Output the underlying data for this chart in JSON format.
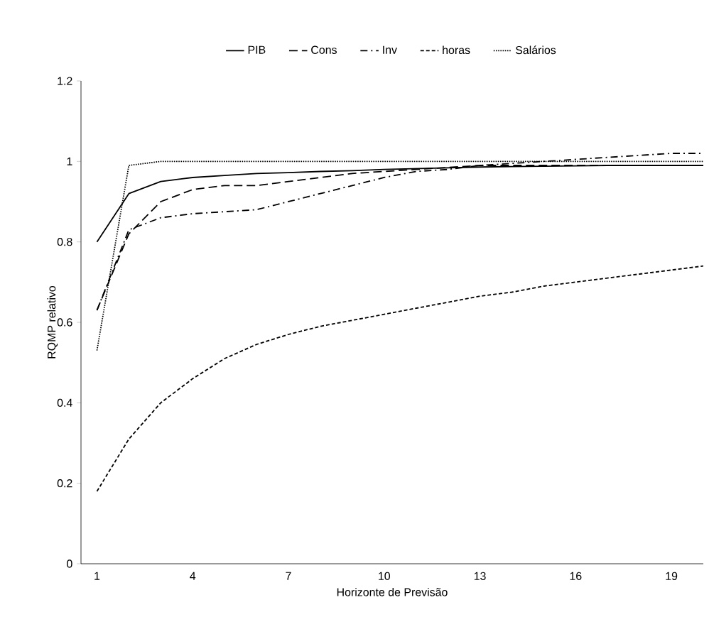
{
  "chart_data": {
    "type": "line",
    "xlabel": "Horizonte de Previsão",
    "ylabel": "RQMP relativo",
    "categories": [
      "1",
      null,
      null,
      "4",
      null,
      null,
      "7",
      null,
      null,
      "10",
      null,
      null,
      "13",
      null,
      null,
      "16",
      null,
      null,
      "19",
      null
    ],
    "ylim": [
      0,
      1.2
    ],
    "yticks": [
      0,
      0.2,
      0.4,
      0.6,
      0.8,
      1,
      1.2
    ],
    "grid": false,
    "legend": "top",
    "marker": "none",
    "series": [
      {
        "name": "PIB",
        "color": "#000000",
        "line_style": "solid",
        "values": [
          0.8,
          0.92,
          0.95,
          0.96,
          0.965,
          0.97,
          0.972,
          0.975,
          0.977,
          0.98,
          0.982,
          0.984,
          0.986,
          0.987,
          0.988,
          0.989,
          0.99,
          0.99,
          0.99,
          0.99
        ]
      },
      {
        "name": "Cons",
        "color": "#000000",
        "line_style": "longdashed",
        "values": [
          0.63,
          0.82,
          0.9,
          0.93,
          0.94,
          0.94,
          0.95,
          0.96,
          0.97,
          0.975,
          0.98,
          0.985,
          0.99,
          0.99,
          0.99,
          0.99,
          0.99,
          0.99,
          0.99,
          0.99
        ]
      },
      {
        "name": "Inv",
        "color": "#000000",
        "line_style": "dashdot",
        "values": [
          0.63,
          0.83,
          0.86,
          0.87,
          0.875,
          0.88,
          0.9,
          0.92,
          0.94,
          0.96,
          0.975,
          0.98,
          0.99,
          0.995,
          1.0,
          1.005,
          1.01,
          1.015,
          1.02,
          1.02
        ]
      },
      {
        "name": "horas",
        "color": "#000000",
        "line_style": "dashed",
        "values": [
          0.18,
          0.31,
          0.4,
          0.46,
          0.51,
          0.545,
          0.57,
          0.59,
          0.605,
          0.62,
          0.635,
          0.65,
          0.665,
          0.675,
          0.69,
          0.7,
          0.71,
          0.72,
          0.73,
          0.74
        ]
      },
      {
        "name": "Salários",
        "color": "#000000",
        "line_style": "dotted",
        "values": [
          0.53,
          0.99,
          1.0,
          1.0,
          1.0,
          1.0,
          1.0,
          1.0,
          1.0,
          1.0,
          1.0,
          1.0,
          1.0,
          1.0,
          1.0,
          1.0,
          1.0,
          1.0,
          1.0,
          1.0
        ]
      }
    ]
  }
}
